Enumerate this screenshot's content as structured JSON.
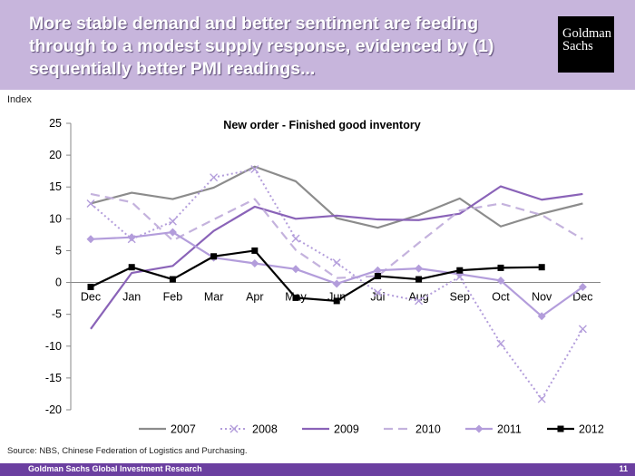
{
  "slide": {
    "title": "More stable demand and better sentiment are feeding through to a modest supply response, evidenced by (1) sequentially better PMI readings...",
    "logo_line1": "Goldman",
    "logo_line2": "Sachs",
    "source": "Source: NBS, Chinese Federation of Logistics and Purchasing.",
    "footer_left": "Goldman Sachs Global Investment Research",
    "page_number": "11"
  },
  "chart_data": {
    "type": "line",
    "title": "New order - Finished good inventory",
    "ylabel": "Index",
    "xlabel": "",
    "categories": [
      "Dec",
      "Jan",
      "Feb",
      "Mar",
      "Apr",
      "May",
      "Jun",
      "Jul",
      "Aug",
      "Sep",
      "Oct",
      "Nov",
      "Dec"
    ],
    "ylim": [
      -20,
      25
    ],
    "yticks": [
      -20,
      -15,
      -10,
      -5,
      0,
      5,
      10,
      15,
      20,
      25
    ],
    "grid": false,
    "legend_position": "bottom",
    "series": [
      {
        "name": "2007",
        "color": "#8c8c8c",
        "style": "solid",
        "marker": "none",
        "values": [
          12.4,
          14.1,
          13.1,
          14.9,
          18.2,
          15.9,
          10.1,
          8.6,
          10.6,
          13.2,
          8.8,
          10.8,
          12.4
        ]
      },
      {
        "name": "2008",
        "color": "#b39ddb",
        "style": "dotted",
        "marker": "x",
        "values": [
          12.4,
          6.8,
          9.6,
          16.5,
          17.8,
          6.9,
          3.1,
          -1.6,
          -2.9,
          0.9,
          -9.6,
          -18.3,
          -7.3
        ]
      },
      {
        "name": "2009",
        "color": "#8a63b8",
        "style": "solid",
        "marker": "none",
        "values": [
          -7.3,
          1.5,
          2.6,
          8.1,
          11.9,
          10.0,
          10.5,
          9.9,
          9.8,
          10.8,
          15.1,
          13.0,
          13.9
        ]
      },
      {
        "name": "2010",
        "color": "#c4b2dd",
        "style": "dashed",
        "marker": "none",
        "values": [
          13.9,
          12.6,
          6.6,
          9.9,
          13.1,
          5.1,
          0.7,
          1.0,
          6.2,
          11.3,
          12.4,
          10.6,
          6.8
        ]
      },
      {
        "name": "2011",
        "color": "#b39ddb",
        "style": "solid",
        "marker": "diamond",
        "values": [
          6.8,
          7.1,
          7.9,
          3.9,
          3.0,
          2.1,
          -0.2,
          1.9,
          2.2,
          1.3,
          0.3,
          -5.3,
          -0.7
        ]
      },
      {
        "name": "2012",
        "color": "#000000",
        "style": "solid",
        "marker": "square",
        "values": [
          -0.7,
          2.4,
          0.5,
          4.1,
          5.0,
          -2.4,
          -2.9,
          1.0,
          0.5,
          1.9,
          2.3,
          2.4,
          null
        ]
      }
    ]
  }
}
